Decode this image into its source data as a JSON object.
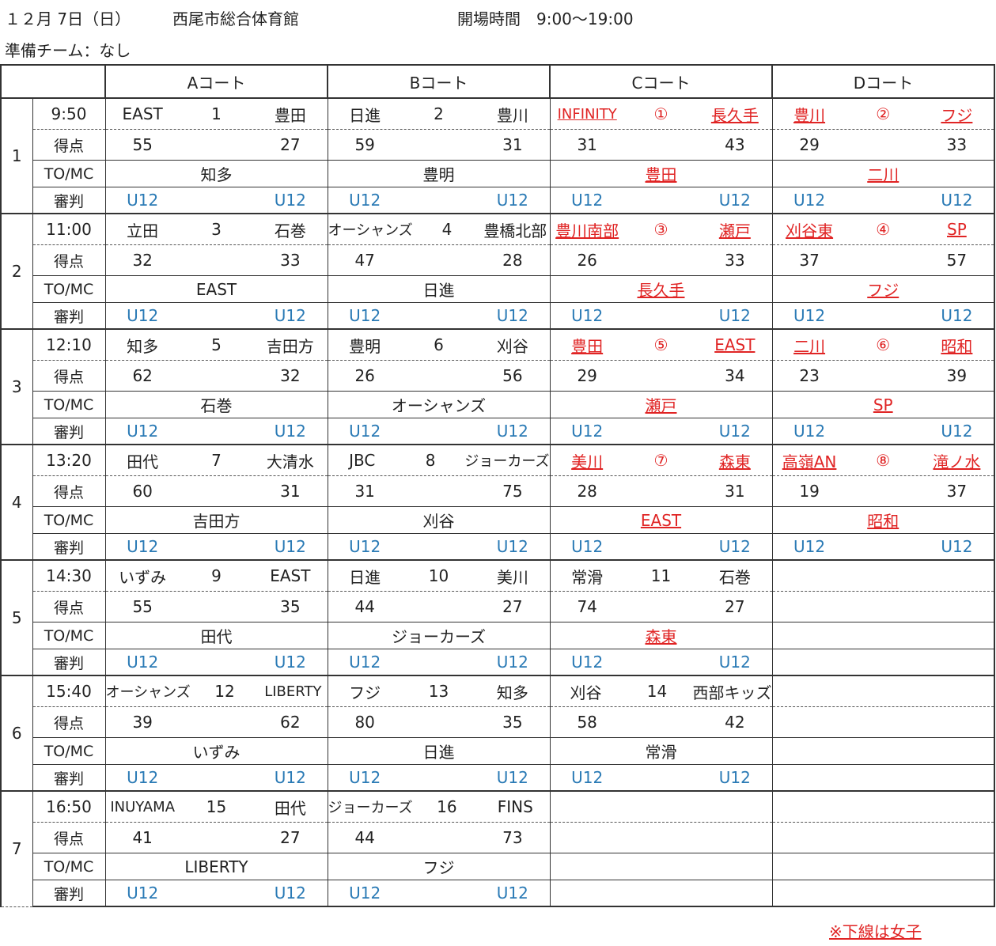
{
  "header": {
    "date": "１２月 7日（日）",
    "venue": "西尾市総合体育館",
    "open_time": "開場時間　9:00〜19:00",
    "prep_team": "準備チーム：なし"
  },
  "courts": [
    "Aコート",
    "Bコート",
    "Cコート",
    "Dコート"
  ],
  "labels": {
    "score": "得点",
    "tomc": "TO/MC",
    "referee": "審判"
  },
  "rounds": [
    {
      "num": "1",
      "time": "9:50",
      "games": [
        {
          "home": "EAST",
          "no": "1",
          "away": "豊田",
          "hs": "55",
          "as": "27",
          "tomc": "知多",
          "r1": "U12",
          "r2": "U12",
          "girls": false
        },
        {
          "home": "日進",
          "no": "2",
          "away": "豊川",
          "hs": "59",
          "as": "31",
          "tomc": "豊明",
          "r1": "U12",
          "r2": "U12",
          "girls": false
        },
        {
          "home": "INFINITY",
          "no": "①",
          "away": "長久手",
          "hs": "31",
          "as": "43",
          "tomc": "豊田",
          "r1": "U12",
          "r2": "U12",
          "girls": true
        },
        {
          "home": "豊川",
          "no": "②",
          "away": "フジ",
          "hs": "29",
          "as": "33",
          "tomc": "二川",
          "r1": "U12",
          "r2": "U12",
          "girls": true
        }
      ]
    },
    {
      "num": "2",
      "time": "11:00",
      "games": [
        {
          "home": "立田",
          "no": "3",
          "away": "石巻",
          "hs": "32",
          "as": "33",
          "tomc": "EAST",
          "r1": "U12",
          "r2": "U12",
          "girls": false
        },
        {
          "home": "オーシャンズ",
          "no": "4",
          "away": "豊橋北部",
          "hs": "47",
          "as": "28",
          "tomc": "日進",
          "r1": "U12",
          "r2": "U12",
          "girls": false
        },
        {
          "home": "豊川南部",
          "no": "③",
          "away": "瀬戸",
          "hs": "26",
          "as": "33",
          "tomc": "長久手",
          "r1": "U12",
          "r2": "U12",
          "girls": true
        },
        {
          "home": "刈谷東",
          "no": "④",
          "away": "SP",
          "hs": "37",
          "as": "57",
          "tomc": "フジ",
          "r1": "U12",
          "r2": "U12",
          "girls": true
        }
      ]
    },
    {
      "num": "3",
      "time": "12:10",
      "games": [
        {
          "home": "知多",
          "no": "5",
          "away": "吉田方",
          "hs": "62",
          "as": "32",
          "tomc": "石巻",
          "r1": "U12",
          "r2": "U12",
          "girls": false
        },
        {
          "home": "豊明",
          "no": "6",
          "away": "刈谷",
          "hs": "26",
          "as": "56",
          "tomc": "オーシャンズ",
          "r1": "U12",
          "r2": "U12",
          "girls": false
        },
        {
          "home": "豊田",
          "no": "⑤",
          "away": "EAST",
          "hs": "29",
          "as": "34",
          "tomc": "瀬戸",
          "r1": "U12",
          "r2": "U12",
          "girls": true
        },
        {
          "home": "二川",
          "no": "⑥",
          "away": "昭和",
          "hs": "23",
          "as": "39",
          "tomc": "SP",
          "r1": "U12",
          "r2": "U12",
          "girls": true
        }
      ]
    },
    {
      "num": "4",
      "time": "13:20",
      "games": [
        {
          "home": "田代",
          "no": "7",
          "away": "大清水",
          "hs": "60",
          "as": "31",
          "tomc": "吉田方",
          "r1": "U12",
          "r2": "U12",
          "girls": false
        },
        {
          "home": "JBC",
          "no": "8",
          "away": "ジョーカーズ",
          "hs": "31",
          "as": "75",
          "tomc": "刈谷",
          "r1": "U12",
          "r2": "U12",
          "girls": false
        },
        {
          "home": "美川",
          "no": "⑦",
          "away": "森東",
          "hs": "28",
          "as": "31",
          "tomc": "EAST",
          "r1": "U12",
          "r2": "U12",
          "girls": true
        },
        {
          "home": "高嶺AN",
          "no": "⑧",
          "away": "滝ノ水",
          "hs": "19",
          "as": "37",
          "tomc": "昭和",
          "r1": "U12",
          "r2": "U12",
          "girls": true
        }
      ]
    },
    {
      "num": "5",
      "time": "14:30",
      "games": [
        {
          "home": "いずみ",
          "no": "9",
          "away": "EAST",
          "hs": "55",
          "as": "35",
          "tomc": "田代",
          "r1": "U12",
          "r2": "U12",
          "girls": false
        },
        {
          "home": "日進",
          "no": "10",
          "away": "美川",
          "hs": "44",
          "as": "27",
          "tomc": "ジョーカーズ",
          "r1": "U12",
          "r2": "U12",
          "girls": false
        },
        {
          "home": "常滑",
          "no": "11",
          "away": "石巻",
          "hs": "74",
          "as": "27",
          "tomc": "森東",
          "r1": "U12",
          "r2": "U12",
          "girls": false,
          "tomc_girls": true
        },
        null
      ]
    },
    {
      "num": "6",
      "time": "15:40",
      "games": [
        {
          "home": "オーシャンズ",
          "no": "12",
          "away": "LIBERTY",
          "hs": "39",
          "as": "62",
          "tomc": "いずみ",
          "r1": "U12",
          "r2": "U12",
          "girls": false
        },
        {
          "home": "フジ",
          "no": "13",
          "away": "知多",
          "hs": "80",
          "as": "35",
          "tomc": "日進",
          "r1": "U12",
          "r2": "U12",
          "girls": false
        },
        {
          "home": "刈谷",
          "no": "14",
          "away": "西部キッズ",
          "hs": "58",
          "as": "42",
          "tomc": "常滑",
          "r1": "U12",
          "r2": "U12",
          "girls": false
        },
        null
      ]
    },
    {
      "num": "7",
      "time": "16:50",
      "games": [
        {
          "home": "INUYAMA",
          "no": "15",
          "away": "田代",
          "hs": "41",
          "as": "27",
          "tomc": "LIBERTY",
          "r1": "U12",
          "r2": "U12",
          "girls": false
        },
        {
          "home": "ジョーカーズ",
          "no": "16",
          "away": "FINS",
          "hs": "44",
          "as": "73",
          "tomc": "フジ",
          "r1": "U12",
          "r2": "U12",
          "girls": false
        },
        null,
        null
      ]
    }
  ],
  "note": "※下線は女子",
  "colors": {
    "referee": "#2a7ab5",
    "girls": "#e02424"
  }
}
